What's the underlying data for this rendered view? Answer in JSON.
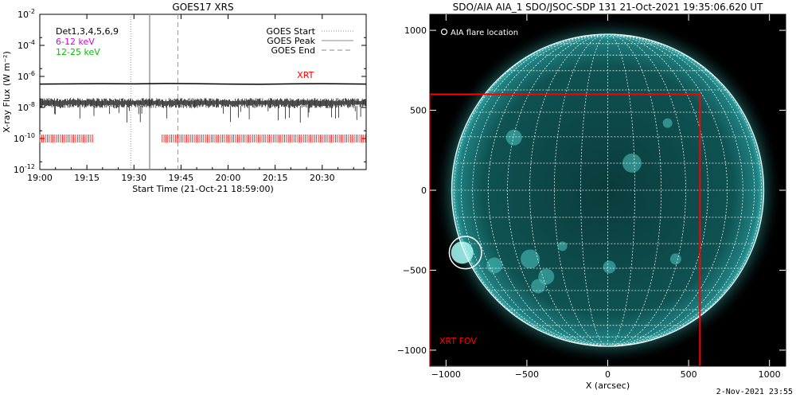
{
  "chart_data": [
    {
      "type": "line",
      "title": "GOES17 XRS",
      "xlabel": "Start Time (21-Oct-21 18:59:00)",
      "ylabel": "X-ray Flux (W m⁻²)",
      "x_ticks": [
        "19:00",
        "19:15",
        "19:30",
        "19:45",
        "20:00",
        "20:15",
        "20:30"
      ],
      "x_tick_minutes": [
        0,
        15,
        30,
        45,
        60,
        75,
        90
      ],
      "xlim_minutes": [
        0,
        104
      ],
      "y_scale": "log",
      "ylim": [
        1e-12,
        0.01
      ],
      "y_tick_base": "10",
      "y_tick_exponents": [
        "-12",
        "-10",
        "-8",
        "-6",
        "-4",
        "-2"
      ],
      "y_tick_values": [
        1e-12,
        1e-10,
        1e-08,
        1e-06,
        0.0001,
        0.01
      ],
      "legend_left": [
        {
          "text": "Det1,3,4,5,6,9",
          "color": "#000000"
        },
        {
          "text": "6-12 keV",
          "color": "#e000e0"
        },
        {
          "text": "12-25 keV",
          "color": "#00c000"
        }
      ],
      "legend_right": [
        {
          "text": "GOES Start",
          "style": "dotted",
          "color": "#888888"
        },
        {
          "text": "GOES Peak",
          "style": "solid",
          "color": "#888888"
        },
        {
          "text": "GOES End",
          "style": "dashed",
          "color": "#888888"
        }
      ],
      "vertical_markers_minutes": {
        "start": 29,
        "peak": 35,
        "end": 44
      },
      "series": [
        {
          "name": "XRT",
          "color": "#000000",
          "kind": "line",
          "x": [
            0,
            10,
            20,
            30,
            40,
            50,
            60,
            70,
            80,
            90,
            104
          ],
          "y": [
            3.2e-07,
            3.3e-07,
            3.4e-07,
            3.3e-07,
            3.5e-07,
            3.4e-07,
            3.2e-07,
            3.1e-07,
            3.3e-07,
            3.4e-07,
            3.2e-07
          ]
        },
        {
          "color": "#000000",
          "kind": "noisy",
          "baseline": 2e-08,
          "x_range": [
            0,
            104
          ]
        },
        {
          "color": "#ff0000",
          "kind": "coverage",
          "y": 1e-10,
          "intervals": [
            [
              0,
              17
            ],
            [
              39,
              104
            ]
          ]
        }
      ],
      "annotations": [
        {
          "text": "XRT",
          "color": "#ff0000",
          "x": 82,
          "y": 8e-07
        }
      ]
    },
    {
      "type": "image",
      "title": "SDO/AIA AIA_1 SDO/JSOC-SDP 131 21-Oct-2021 19:35:06.620 UT",
      "xlabel": "X (arcsec)",
      "ylabel": "",
      "xlim": [
        -1100,
        1100
      ],
      "ylim": [
        -1100,
        1100
      ],
      "x_ticks": [
        -1000,
        -500,
        0,
        500,
        1000
      ],
      "y_ticks": [
        -1000,
        -500,
        0,
        500,
        1000
      ],
      "x_tick_labels": [
        "−1000",
        "−500",
        "0",
        "500",
        "1000"
      ],
      "y_tick_labels": [
        "−1000",
        "−500",
        "0",
        "500",
        "1000"
      ],
      "solar_radius_arcsec": 965,
      "grid_step_deg": 10,
      "legend": "AIA flare location",
      "flare_location": {
        "x": -880,
        "y": -390,
        "radius": 100
      },
      "xrt_fov": {
        "label": "XRT FOV",
        "x": [
          -1100,
          570
        ],
        "y": [
          -1100,
          600
        ],
        "color": "#ff0000"
      },
      "colormap": "teal-on-black"
    }
  ],
  "footer": {
    "stamp": "2-Nov-2021 23:55"
  }
}
